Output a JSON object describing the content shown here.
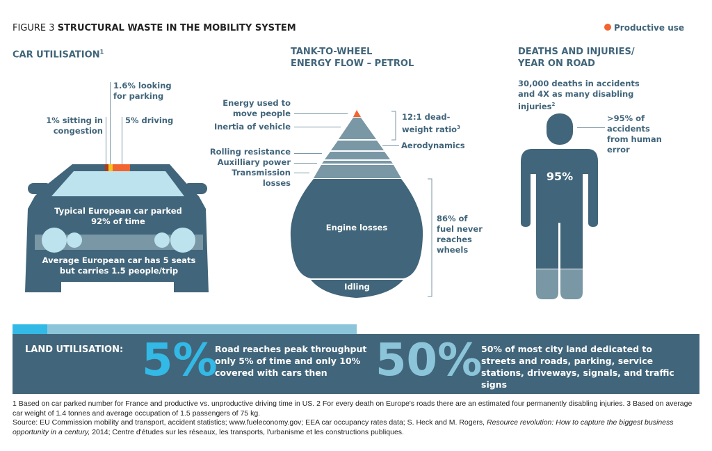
{
  "header": {
    "figure": "FIGURE 3",
    "title": "STRUCTURAL WASTE IN THE MOBILITY SYSTEM",
    "legend": "Productive use"
  },
  "car": {
    "heading": "CAR UTILISATION",
    "heading_sup": "1",
    "looking_parking": "1.6% looking for parking",
    "congestion": "1% sitting in congestion",
    "driving": "5% driving",
    "parked": "Typical European car parked",
    "parked2": "92% of time",
    "seats": "Average European car has 5 seats",
    "seats2": "but carries 1.5 people/trip"
  },
  "energy": {
    "heading1": "TANK-TO-WHEEL",
    "heading2": "ENERGY FLOW – PETROL",
    "move_people": "Energy used to move people",
    "inertia": "Inertia of vehicle",
    "rolling": "Rolling resistance",
    "auxiliary": "Auxilliary power",
    "transmission": "Transmission losses",
    "aero": "Aerodynamics",
    "deadweight": "12:1 dead-weight ratio",
    "deadweight_sup": "3",
    "engine": "Engine losses",
    "idling": "Idling",
    "fuel": "86% of fuel never reaches wheels"
  },
  "deaths": {
    "heading1": "DEATHS AND INJURIES/",
    "heading2": "YEAR ON ROAD",
    "stat": "30,000 deaths in accidents and 4X as many disabling injuries",
    "stat_sup": "2",
    "human_error": ">95% of accidents from human error",
    "pct": "95%"
  },
  "land": {
    "label": "LAND UTILISATION:",
    "big1": "5%",
    "text1": "Road reaches peak throughput only 5% of time and only 10% covered with cars then",
    "big2": "50%",
    "text2": "50% of most city land dedicated to streets and roads, parking, service stations, driveways, signals, and traffic signs"
  },
  "footnotes": {
    "line1": "1 Based on car parked number for France and productive vs. unproductive driving time in US.  2 For every death on Europe's roads there are an estimated four permanently disabling injuries. 3 Based on average car weight of 1.4 tonnes and average occupation of 1.5 passengers of 75 kg.",
    "source": "Source: EU Commission mobility and transport, accident statistics; www.fueleconomy.gov; EEA car occupancy rates data; S. Heck and M. Rogers, ",
    "book": "Resource revolution: How to capture the biggest business opportunity in a century,",
    "source_end": " 2014; Centre d'études sur les réseaux, les transports, l'urbanisme et les constructions publiques."
  },
  "colors": {
    "dark": "#41657a",
    "mid": "#7a97a5",
    "light": "#bde4ee",
    "orange": "#f26430",
    "cyan": "#33b9e6",
    "lightblue": "#8cc5d9"
  }
}
